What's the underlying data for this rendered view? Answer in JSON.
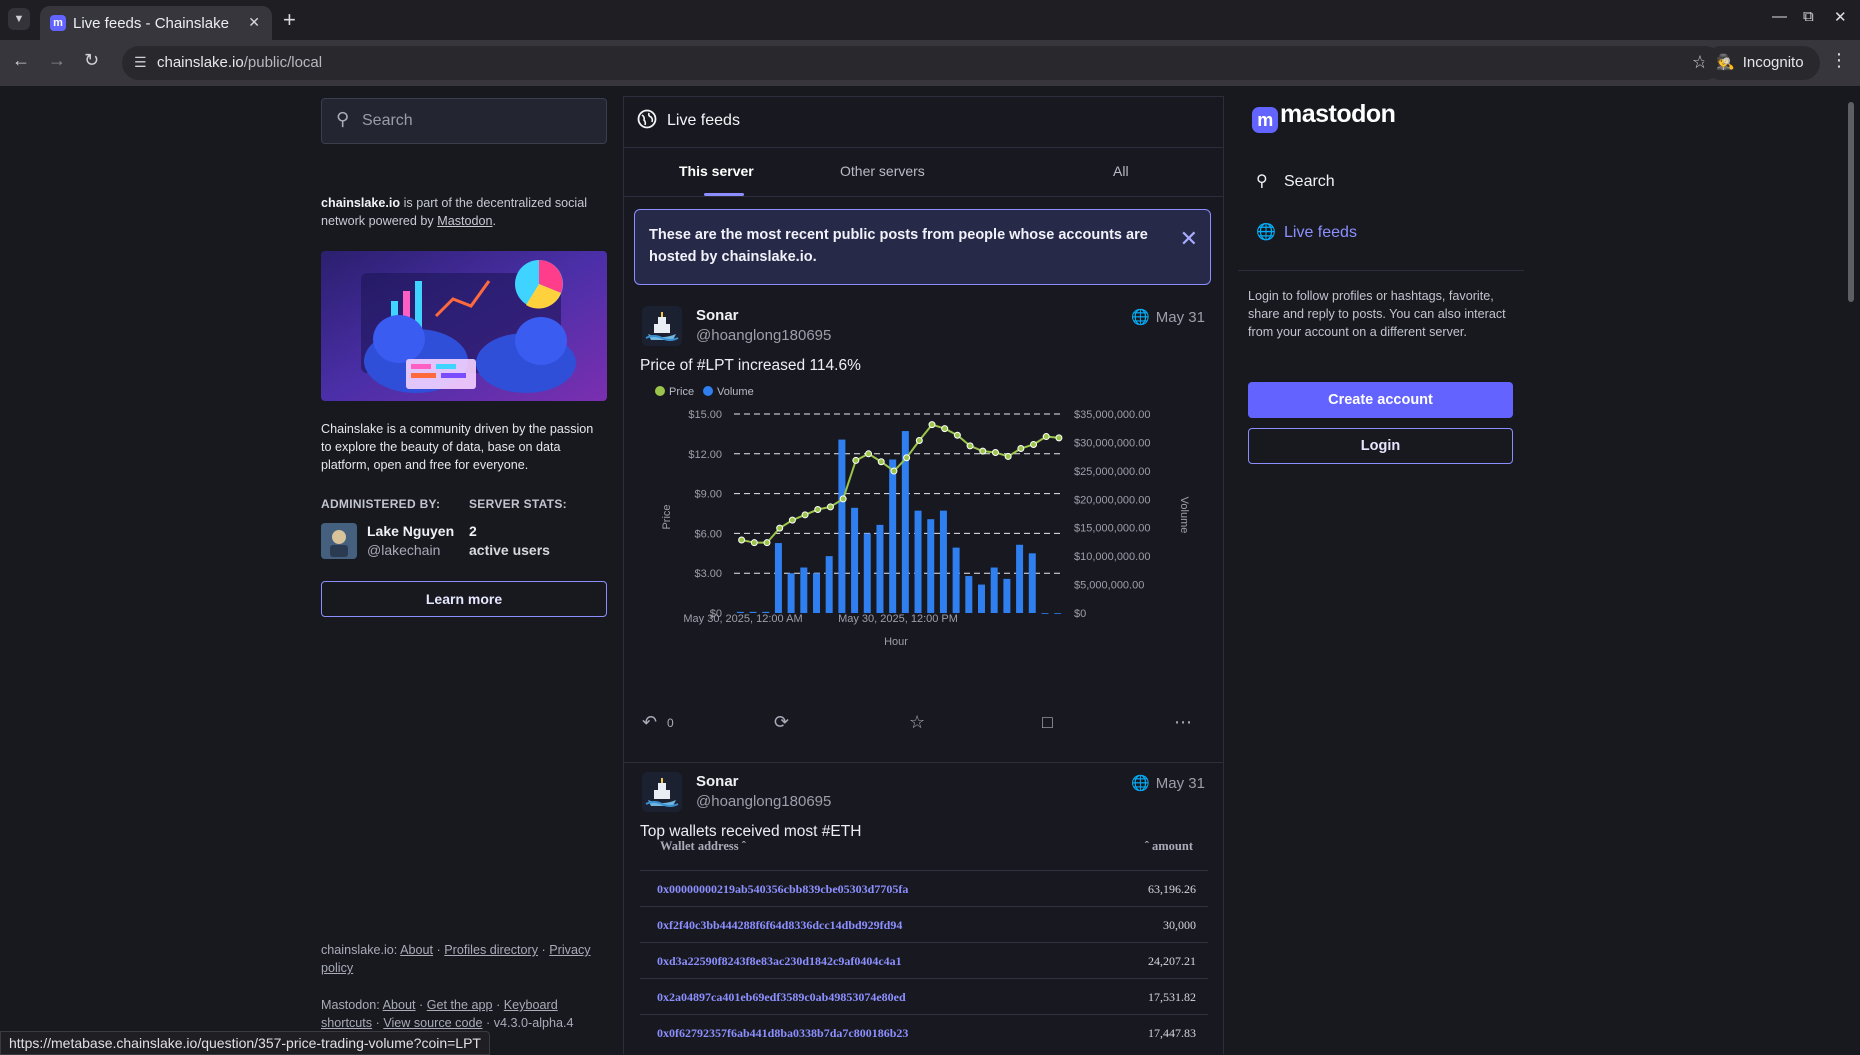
{
  "browser": {
    "tab_title": "Live feeds - Chainslake",
    "url_host": "chainslake.io",
    "url_path": "/public/local",
    "profile_label": "Incognito",
    "status_url": "https://metabase.chainslake.io/question/357-price-trading-volume?coin=LPT"
  },
  "left": {
    "search_placeholder": "Search",
    "about_host": "chainslake.io",
    "about_text": " is part of the decentralized social network powered by ",
    "about_link": "Mastodon",
    "description": "Chainslake is a community driven by the passion to explore the beauty of data, base on data platform, open and free for everyone.",
    "administered_by_label": "ADMINISTERED BY:",
    "server_stats_label": "SERVER STATS:",
    "admin_name": "Lake Nguyen",
    "admin_handle": "@lakechain",
    "active_users_count": "2",
    "active_users_label": "active users",
    "learn_more": "Learn more",
    "footer_host": "chainslake.io:",
    "footer_links1": [
      "About",
      "Profiles directory",
      "Privacy policy"
    ],
    "footer_mastodon": "Mastodon:",
    "footer_links2": [
      "About",
      "Get the app",
      "Keyboard shortcuts",
      "View source code"
    ],
    "version": "v4.3.0-alpha.4"
  },
  "feed": {
    "header_title": "Live feeds",
    "tabs": [
      "This server",
      "Other servers",
      "All"
    ],
    "active_tab": "This server",
    "notice": "These are the most recent public posts from people whose accounts are hosted by chainslake.io.",
    "posts": [
      {
        "author": "Sonar",
        "handle": "@hoanglong180695",
        "date": "May 31",
        "text": "Price of #LPT increased 114.6%",
        "reply_count": "0"
      },
      {
        "author": "Sonar",
        "handle": "@hoanglong180695",
        "date": "May 31",
        "text": "Top wallets received most #ETH",
        "table_headers": [
          "Wallet address",
          "amount"
        ],
        "rows": [
          {
            "address": "0x00000000219ab540356cbb839cbe05303d7705fa",
            "amount": "63,196.26"
          },
          {
            "address": "0xf2f40c3bb444288f6f64d8336dcc14dbd929fd94",
            "amount": "30,000"
          },
          {
            "address": "0xd3a22590f8243f8e83ac230d1842c9af0404c4a1",
            "amount": "24,207.21"
          },
          {
            "address": "0x2a04897ca401eb69edf3589c0ab49853074e80ed",
            "amount": "17,531.82"
          },
          {
            "address": "0x0f62792357f6ab441d8ba0338b7da7c800186b23",
            "amount": "17,447.83"
          }
        ]
      }
    ]
  },
  "right": {
    "logo_text": "mastodon",
    "nav_search": "Search",
    "nav_live": "Live feeds",
    "login_text": "Login to follow profiles or hashtags, favorite, share and reply to posts. You can also interact from your account on a different server.",
    "create_account": "Create account",
    "login": "Login"
  },
  "colors": {
    "accent": "#6364ff",
    "price_line": "#9bc54a",
    "volume_bar": "#2f7ff0"
  },
  "chart_data": {
    "type": "bar",
    "title": "",
    "legend": [
      "Price",
      "Volume"
    ],
    "legend_position": "top-left",
    "xlabel": "Hour",
    "ylabel_left": "Price",
    "ylabel_right": "Volume",
    "x_tick_labels": [
      "May 30, 2025, 12:00 AM",
      "May 30, 2025, 12:00 PM"
    ],
    "y_left_ticks": [
      "$0",
      "$3.00",
      "$6.00",
      "$9.00",
      "$12.00",
      "$15.00"
    ],
    "y_right_ticks": [
      "$0",
      "$5,000,000.00",
      "$10,000,000.00",
      "$15,000,000.00",
      "$20,000,000.00",
      "$25,000,000.00",
      "$30,000,000.00",
      "$35,000,000.00"
    ],
    "ylim_left": [
      0,
      15
    ],
    "ylim_right": [
      0,
      35000000
    ],
    "grid": true,
    "series": [
      {
        "name": "Price",
        "kind": "line",
        "axis": "left",
        "values": [
          5.5,
          5.3,
          5.3,
          6.4,
          7.0,
          7.4,
          7.8,
          8.0,
          8.6,
          11.5,
          12.0,
          11.4,
          10.7,
          11.7,
          13.0,
          14.2,
          13.9,
          13.4,
          12.6,
          12.2,
          12.1,
          11.8,
          12.4,
          12.7,
          13.3,
          13.2
        ],
        "x_start_index": 1
      },
      {
        "name": "Volume",
        "kind": "bar",
        "axis": "right",
        "values": [
          200000,
          200000,
          200000,
          12300000,
          7000000,
          8000000,
          7000000,
          10000000,
          30500000,
          18500000,
          14000000,
          15500000,
          27000000,
          32000000,
          18000000,
          16500000,
          18000000,
          11500000,
          6500000,
          5000000,
          8000000,
          6000000,
          12000000,
          10500000,
          0,
          0
        ]
      }
    ]
  }
}
